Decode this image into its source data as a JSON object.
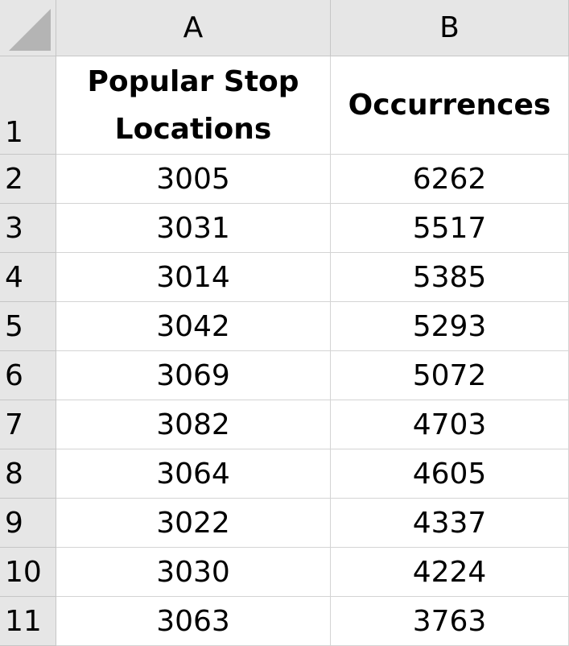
{
  "columns": [
    "A",
    "B"
  ],
  "header_row": {
    "row_number": "1",
    "col_a_line1": "Popular Stop",
    "col_a_line2": "Locations",
    "col_b": "Occurrences"
  },
  "rows": [
    {
      "row_number": "2",
      "location": "3005",
      "occurrences": "6262"
    },
    {
      "row_number": "3",
      "location": "3031",
      "occurrences": "5517"
    },
    {
      "row_number": "4",
      "location": "3014",
      "occurrences": "5385"
    },
    {
      "row_number": "5",
      "location": "3042",
      "occurrences": "5293"
    },
    {
      "row_number": "6",
      "location": "3069",
      "occurrences": "5072"
    },
    {
      "row_number": "7",
      "location": "3082",
      "occurrences": "4703"
    },
    {
      "row_number": "8",
      "location": "3064",
      "occurrences": "4605"
    },
    {
      "row_number": "9",
      "location": "3022",
      "occurrences": "4337"
    },
    {
      "row_number": "10",
      "location": "3030",
      "occurrences": "4224"
    },
    {
      "row_number": "11",
      "location": "3063",
      "occurrences": "3763"
    }
  ]
}
